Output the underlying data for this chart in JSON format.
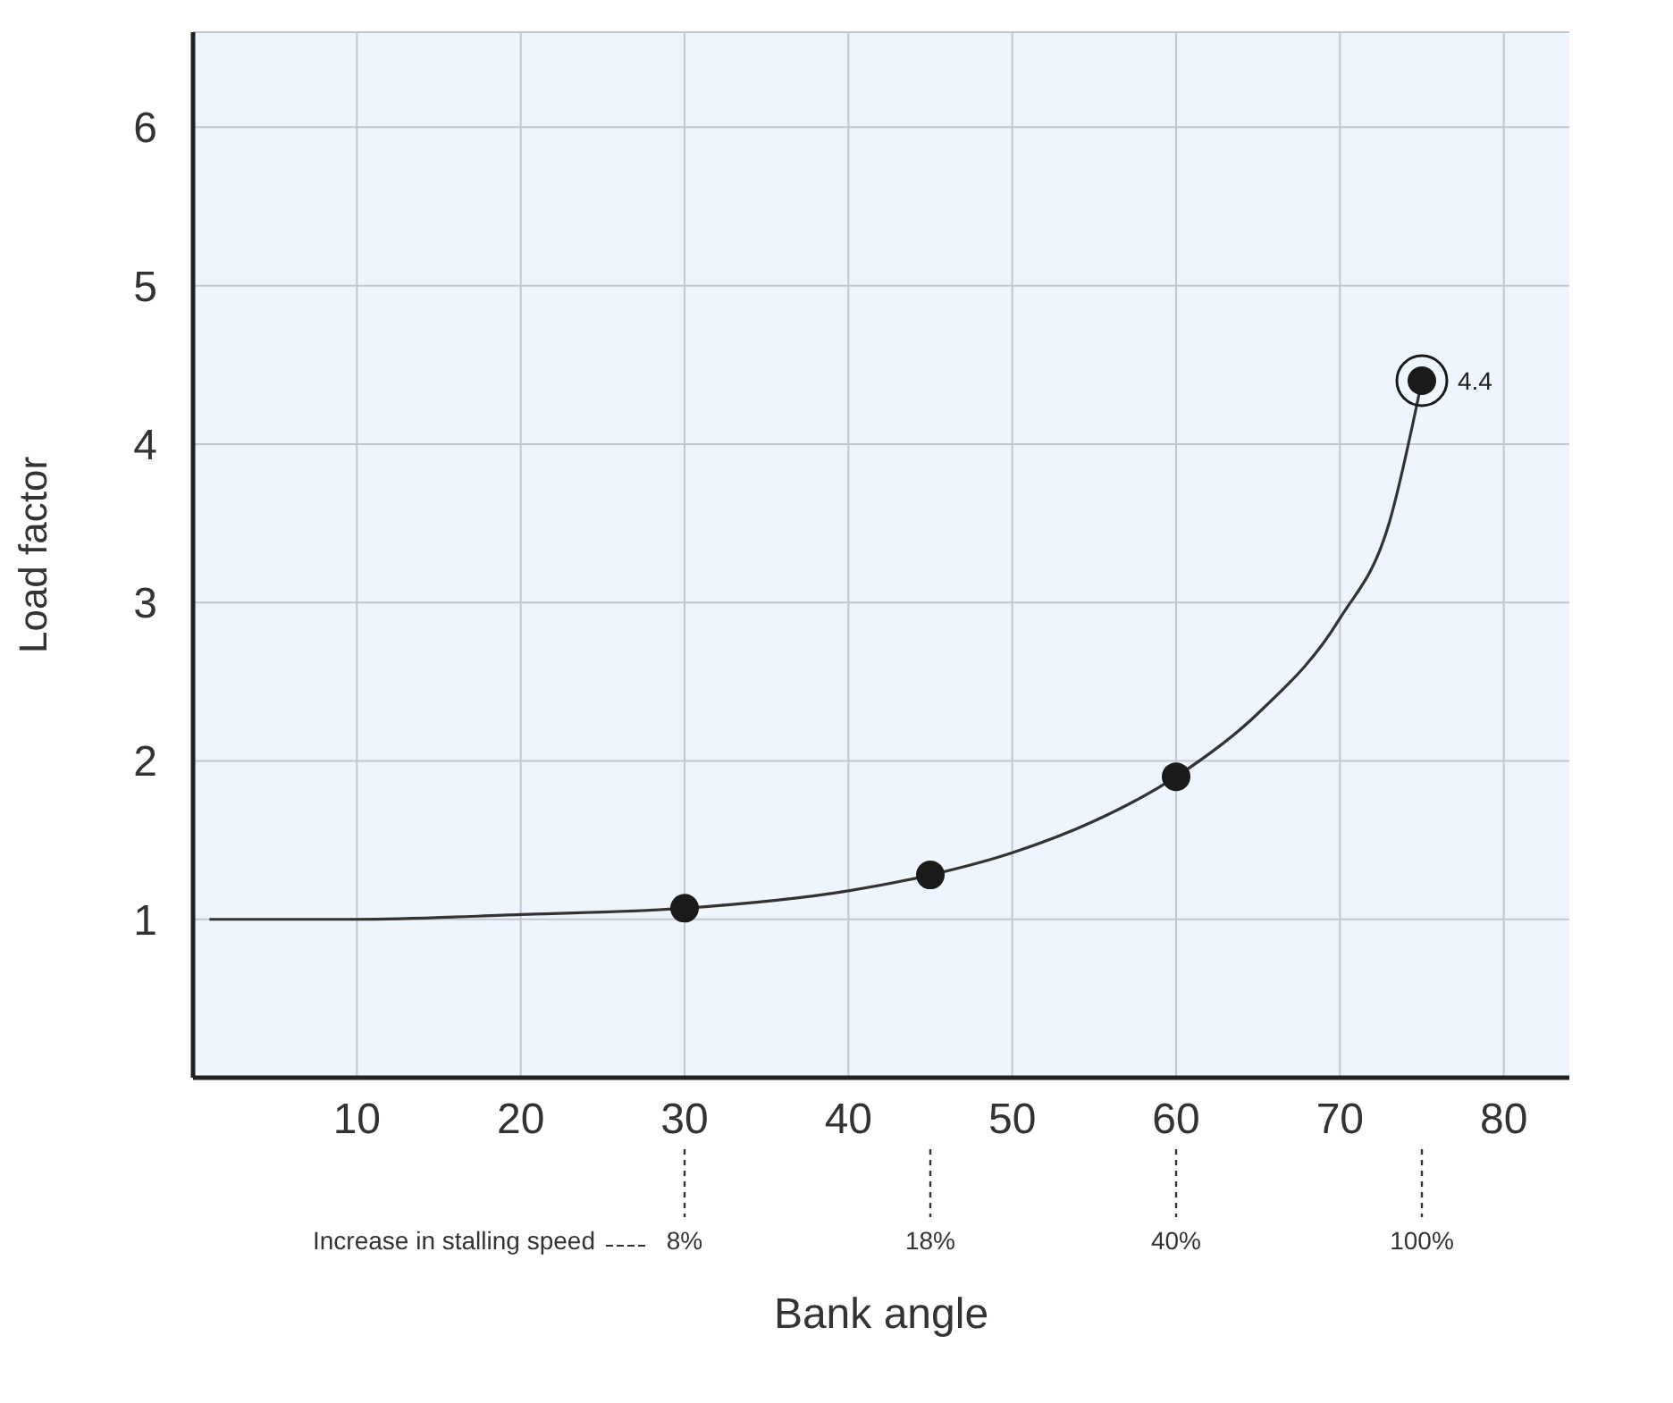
{
  "chart_data": {
    "type": "line",
    "xlabel": "Bank angle",
    "ylabel": "Load factor",
    "xlim": [
      0,
      84
    ],
    "xticks": [
      10,
      20,
      30,
      40,
      50,
      60,
      70,
      80
    ],
    "ylim": [
      0,
      6.6
    ],
    "yticks": [
      1,
      2,
      3,
      4,
      5,
      6
    ],
    "grid": true,
    "series": [
      {
        "color": "#333333",
        "marker": "none",
        "x": [
          1,
          10,
          20,
          30,
          40,
          45,
          50,
          55,
          60,
          65,
          70,
          73,
          75
        ],
        "values": [
          1.0,
          1.0,
          1.03,
          1.07,
          1.18,
          1.28,
          1.42,
          1.62,
          1.9,
          2.3,
          2.9,
          3.5,
          4.4
        ]
      },
      {
        "type": "scatter",
        "color": "#1a1a1a",
        "marker": "circle",
        "x": [
          30,
          45,
          60,
          75
        ],
        "values": [
          1.07,
          1.28,
          1.9,
          4.4
        ],
        "value_labels": [
          null,
          null,
          null,
          "4.4"
        ]
      }
    ],
    "annotations": [
      "Increase in stalling speed",
      {
        "text": "8%",
        "x": 30
      },
      {
        "text": "18%",
        "x": 45
      },
      {
        "text": "40%",
        "x": 60
      },
      {
        "text": "100%",
        "x": 75
      }
    ]
  }
}
